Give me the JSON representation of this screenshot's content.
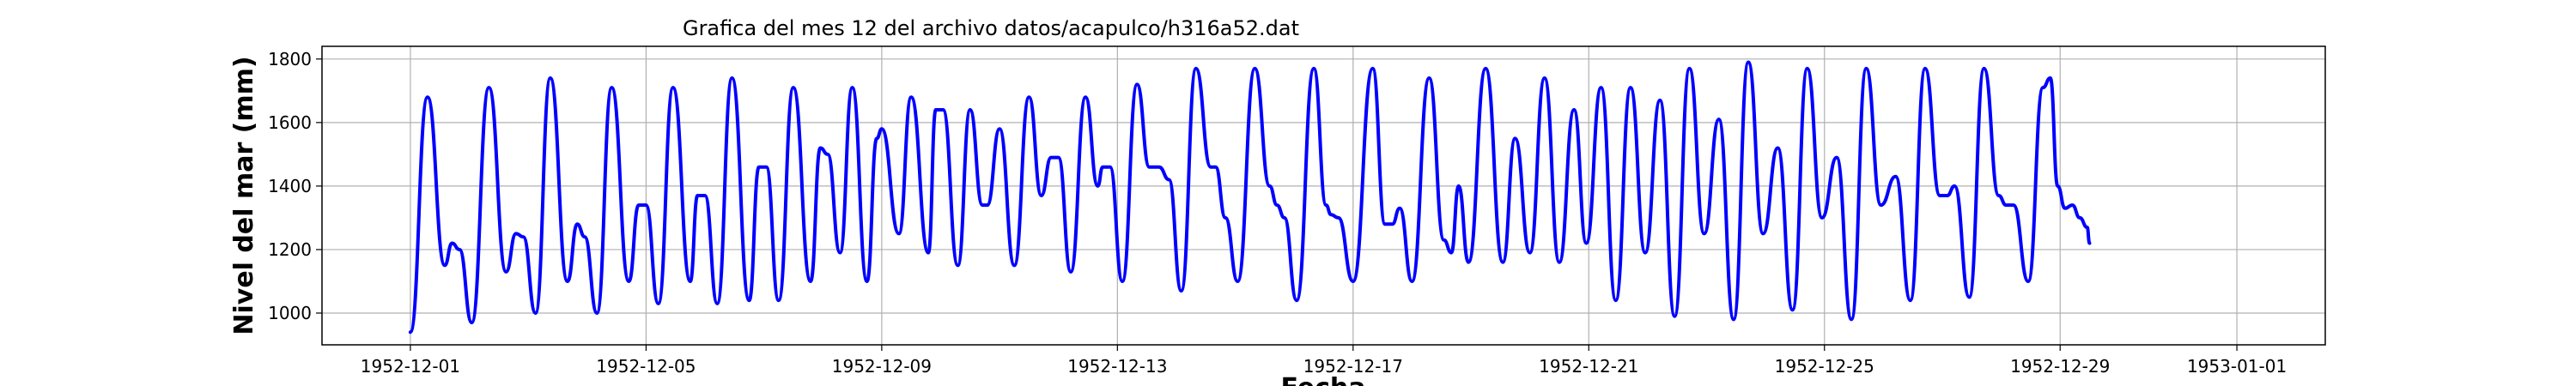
{
  "chart_data": {
    "type": "line",
    "title": "Grafica del mes 12 del archivo datos/acapulco/h316a52.dat",
    "xlabel": "Fecha",
    "ylabel": "Nivel del mar (mm)",
    "x_range": [
      "1952-11-29T12:00",
      "1953-01-02T12:00"
    ],
    "ylim": [
      900,
      1840
    ],
    "y_ticks": [
      1000,
      1200,
      1400,
      1600,
      1800
    ],
    "x_ticks": [
      "1952-12-01",
      "1952-12-05",
      "1952-12-09",
      "1952-12-13",
      "1952-12-17",
      "1952-12-21",
      "1952-12-25",
      "1952-12-29",
      "1953-01-01"
    ],
    "grid": true,
    "series": [
      {
        "color": "#0000ff",
        "x_start": "1952-12-01T00:00",
        "sampling": "hourly",
        "daily_extremes": [
          [
            0,
            940
          ],
          [
            7,
            1680
          ],
          [
            14,
            1150
          ],
          [
            17,
            1220
          ],
          [
            20,
            1200
          ],
          [
            25,
            970
          ],
          [
            32,
            1710
          ],
          [
            39,
            1130
          ],
          [
            43,
            1250
          ],
          [
            46,
            1240
          ],
          [
            51,
            1000
          ],
          [
            57,
            1740
          ],
          [
            64,
            1100
          ],
          [
            68,
            1280
          ],
          [
            71,
            1240
          ],
          [
            76,
            1000
          ],
          [
            82,
            1710
          ],
          [
            89,
            1100
          ],
          [
            93,
            1340
          ],
          [
            96,
            1340
          ],
          [
            101,
            1030
          ],
          [
            107,
            1710
          ],
          [
            114,
            1100
          ],
          [
            117,
            1370
          ],
          [
            120,
            1370
          ],
          [
            125,
            1030
          ],
          [
            131,
            1740
          ],
          [
            138,
            1040
          ],
          [
            142,
            1460
          ],
          [
            145,
            1460
          ],
          [
            150,
            1040
          ],
          [
            156,
            1710
          ],
          [
            163,
            1100
          ],
          [
            167,
            1520
          ],
          [
            170,
            1500
          ],
          [
            175,
            1190
          ],
          [
            180,
            1710
          ],
          [
            186,
            1100
          ],
          [
            190,
            1550
          ],
          [
            192,
            1580
          ],
          [
            199,
            1250
          ],
          [
            204,
            1680
          ],
          [
            211,
            1190
          ],
          [
            214,
            1640
          ],
          [
            217,
            1640
          ],
          [
            223,
            1150
          ],
          [
            228,
            1640
          ],
          [
            233,
            1340
          ],
          [
            235,
            1340
          ],
          [
            240,
            1580
          ],
          [
            246,
            1150
          ],
          [
            252,
            1680
          ],
          [
            257,
            1370
          ],
          [
            261,
            1490
          ],
          [
            264,
            1490
          ],
          [
            269,
            1130
          ],
          [
            275,
            1680
          ],
          [
            280,
            1400
          ],
          [
            282,
            1460
          ],
          [
            285,
            1460
          ],
          [
            290,
            1100
          ],
          [
            296,
            1720
          ],
          [
            301,
            1460
          ],
          [
            305,
            1460
          ],
          [
            309,
            1420
          ],
          [
            314,
            1070
          ],
          [
            320,
            1770
          ],
          [
            326,
            1460
          ],
          [
            328,
            1460
          ],
          [
            332,
            1300
          ],
          [
            337,
            1100
          ],
          [
            344,
            1770
          ],
          [
            350,
            1400
          ],
          [
            353,
            1340
          ],
          [
            356,
            1300
          ],
          [
            361,
            1040
          ],
          [
            368,
            1770
          ],
          [
            373,
            1340
          ],
          [
            375,
            1310
          ],
          [
            378,
            1300
          ],
          [
            384,
            1100
          ],
          [
            392,
            1770
          ],
          [
            397,
            1280
          ],
          [
            400,
            1280
          ],
          [
            403,
            1330
          ],
          [
            408,
            1100
          ],
          [
            415,
            1740
          ],
          [
            421,
            1230
          ],
          [
            424,
            1190
          ],
          [
            427,
            1400
          ],
          [
            431,
            1160
          ],
          [
            438,
            1770
          ],
          [
            445,
            1160
          ],
          [
            450,
            1550
          ],
          [
            456,
            1190
          ],
          [
            462,
            1740
          ],
          [
            468,
            1160
          ],
          [
            474,
            1640
          ],
          [
            479,
            1220
          ],
          [
            485,
            1710
          ],
          [
            491,
            1040
          ],
          [
            497,
            1710
          ],
          [
            503,
            1190
          ],
          [
            509,
            1670
          ],
          [
            515,
            990
          ],
          [
            521,
            1770
          ],
          [
            527,
            1250
          ],
          [
            533,
            1610
          ],
          [
            539,
            980
          ],
          [
            545,
            1790
          ],
          [
            551,
            1250
          ],
          [
            557,
            1520
          ],
          [
            563,
            1010
          ],
          [
            569,
            1770
          ],
          [
            575,
            1300
          ],
          [
            581,
            1490
          ],
          [
            587,
            980
          ],
          [
            593,
            1770
          ],
          [
            599,
            1340
          ],
          [
            605,
            1430
          ],
          [
            611,
            1040
          ],
          [
            617,
            1770
          ],
          [
            623,
            1370
          ],
          [
            626,
            1370
          ],
          [
            629,
            1400
          ],
          [
            635,
            1050
          ],
          [
            641,
            1770
          ],
          [
            647,
            1370
          ],
          [
            650,
            1340
          ],
          [
            653,
            1340
          ],
          [
            659,
            1100
          ],
          [
            665,
            1710
          ],
          [
            668,
            1740
          ],
          [
            671,
            1400
          ],
          [
            674,
            1330
          ],
          [
            677,
            1340
          ],
          [
            680,
            1300
          ],
          [
            683,
            1270
          ],
          [
            684,
            1220
          ]
        ]
      }
    ]
  }
}
